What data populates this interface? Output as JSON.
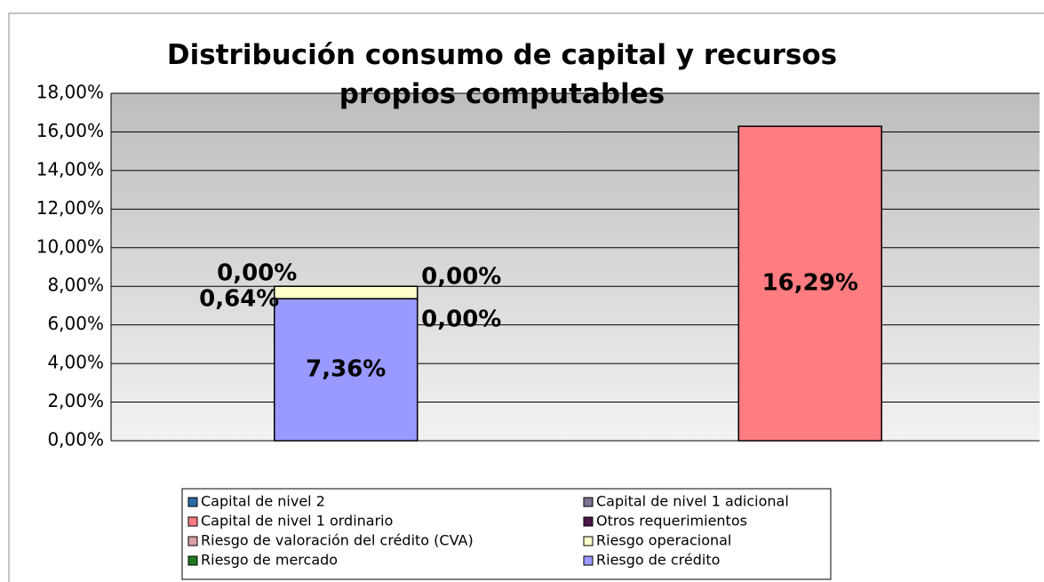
{
  "chart_data": {
    "type": "stacked_bar",
    "title": "Distribución consumo de capital y recursos propios computables",
    "categories": [
      null,
      null
    ],
    "ylim": [
      0,
      18
    ],
    "yticks": [
      {
        "value": 0,
        "label": "0,00%"
      },
      {
        "value": 2,
        "label": "2,00%"
      },
      {
        "value": 4,
        "label": "4,00%"
      },
      {
        "value": 6,
        "label": "6,00%"
      },
      {
        "value": 8,
        "label": "8,00%"
      },
      {
        "value": 10,
        "label": "10,00%"
      },
      {
        "value": 12,
        "label": "12,00%"
      },
      {
        "value": 14,
        "label": "14,00%"
      },
      {
        "value": 16,
        "label": "16,00%"
      },
      {
        "value": 18,
        "label": "18,00%"
      }
    ],
    "grid": true,
    "legend": "bottom",
    "series": [
      {
        "name": "Capital de nivel 2",
        "color": "#2e6aa6",
        "values": [
          null,
          0
        ],
        "value_labels": [
          null,
          "0,00%"
        ]
      },
      {
        "name": "Capital de nivel 1 adicional",
        "color": "#7d7290",
        "values": [
          null,
          0
        ],
        "value_labels": [
          null,
          "0,00%"
        ]
      },
      {
        "name": "Capital de nivel 1 ordinario",
        "color": "#ff7c80",
        "values": [
          null,
          16.29
        ],
        "value_labels": [
          null,
          "16,29%"
        ]
      },
      {
        "name": "Otros requerimientos",
        "color": "#4a1648",
        "values": [
          0,
          null
        ],
        "value_labels": [
          "0,00%",
          null
        ]
      },
      {
        "name": "Riesgo de valoración del crédito (CVA)",
        "color": "#d9a0a4",
        "values": [
          0,
          null
        ],
        "value_labels": [
          "0,00%",
          null
        ]
      },
      {
        "name": "Riesgo operacional",
        "color": "#ffffcc",
        "values": [
          0.64,
          null
        ],
        "value_labels": [
          "0,64%",
          null
        ]
      },
      {
        "name": "Riesgo de mercado",
        "color": "#1e7a1e",
        "values": [
          0,
          null
        ],
        "value_labels": [
          "0,00%",
          null
        ]
      },
      {
        "name": "Riesgo de crédito",
        "color": "#9999ff",
        "values": [
          7.36,
          null
        ],
        "value_labels": [
          "7,36%",
          null
        ]
      }
    ]
  }
}
